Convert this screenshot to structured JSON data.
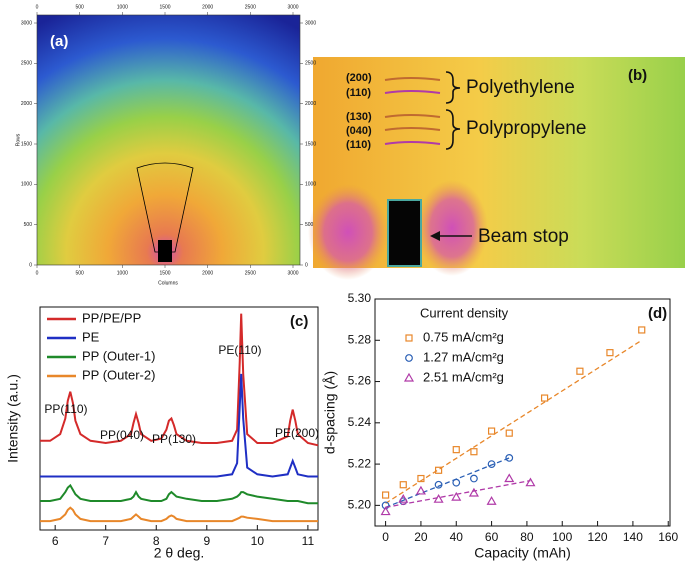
{
  "images": [
    {
      "label": "(a)",
      "xlabel": "Columns",
      "ylabel": "Rows",
      "xticks": [
        0,
        500,
        1000,
        1500,
        2000,
        2500,
        3000
      ],
      "yticks": [
        0,
        500,
        1000,
        1500,
        2000,
        2500,
        3000
      ]
    },
    {
      "label": "(b)",
      "reflections": [
        "(200)",
        "(110)",
        "(130)",
        "(040)",
        "(110)"
      ],
      "phases": [
        "Polyethylene",
        "Polypropylene"
      ],
      "beam_stop": "Beam stop"
    }
  ],
  "chart_data": [
    {
      "type": "line",
      "label": "(c)",
      "xlabel": "2 θ deg.",
      "ylabel": "Intensity (a.u.)",
      "x": [
        5.7,
        5.9,
        6.1,
        6.2,
        6.25,
        6.3,
        6.35,
        6.4,
        6.5,
        6.7,
        7.0,
        7.3,
        7.5,
        7.55,
        7.6,
        7.65,
        7.7,
        7.9,
        8.1,
        8.2,
        8.25,
        8.3,
        8.35,
        8.4,
        8.6,
        8.9,
        9.2,
        9.5,
        9.6,
        9.65,
        9.68,
        9.72,
        9.8,
        10.0,
        10.3,
        10.6,
        10.65,
        10.7,
        10.75,
        10.8,
        11.0,
        11.2
      ],
      "xlim": [
        5.7,
        11.2
      ],
      "xticks": [
        6,
        7,
        8,
        9,
        10,
        11
      ],
      "ylim": [
        0,
        100
      ],
      "annotations": [
        "PP(110)",
        "PP(040)",
        "PP(130)",
        "PE(110)",
        "PE(200)"
      ],
      "series": [
        {
          "name": "PP/PE/PP",
          "color": "#d42a2a",
          "values": [
            40,
            40,
            43,
            50,
            58,
            62,
            57,
            49,
            43,
            40,
            39,
            40,
            43,
            48,
            52,
            48,
            43,
            40,
            41,
            45,
            49,
            50,
            47,
            43,
            40,
            39,
            39,
            40,
            45,
            75,
            97,
            70,
            43,
            39,
            39,
            42,
            49,
            54,
            49,
            43,
            39,
            38
          ]
        },
        {
          "name": "PE",
          "color": "#1f2fc4",
          "values": [
            24,
            24,
            24,
            24,
            24,
            24,
            24,
            24,
            24,
            24,
            24,
            24,
            24,
            24,
            24,
            24,
            24,
            24,
            24,
            24,
            24,
            24,
            24,
            24,
            24,
            24,
            24,
            25,
            30,
            55,
            70,
            50,
            28,
            25,
            24,
            25,
            28,
            31,
            28,
            25,
            24,
            24
          ]
        },
        {
          "name": "PP (Outer-1)",
          "color": "#1f8a2a",
          "values": [
            13,
            13,
            14,
            17,
            19,
            20,
            18,
            16,
            14,
            13,
            13,
            13,
            14,
            15,
            17,
            15,
            14,
            13,
            13,
            14,
            16,
            17,
            16,
            15,
            14,
            13,
            13,
            14,
            15,
            16,
            17,
            17,
            16,
            15,
            14,
            13,
            13,
            13,
            13,
            13,
            12,
            12
          ]
        },
        {
          "name": "PP (Outer-2)",
          "color": "#e8872a",
          "values": [
            4,
            4,
            5,
            7,
            9,
            10,
            9,
            7,
            5,
            4,
            4,
            4,
            5,
            6,
            7,
            6,
            5,
            4,
            4,
            5,
            6,
            6.5,
            6,
            5,
            4,
            4,
            4,
            4,
            5,
            5.5,
            6,
            6,
            5.5,
            5,
            4,
            4,
            4,
            4,
            4,
            4,
            4,
            4
          ]
        }
      ]
    },
    {
      "type": "scatter",
      "label": "(d)",
      "xlabel": "Capacity (mAh)",
      "ylabel": "d-spacing (Å)",
      "legend_title": "Current density",
      "xlim": [
        -6,
        161
      ],
      "xticks": [
        0,
        20,
        40,
        60,
        80,
        100,
        120,
        140,
        160
      ],
      "ylim": [
        5.19,
        5.3
      ],
      "yticks": [
        {
          "value": 5.2,
          "label": "5.20"
        },
        5.22,
        5.24,
        5.26,
        5.28,
        {
          "value": 5.3,
          "label": "5.30"
        }
      ],
      "series": [
        {
          "name": "0.75 mA/cm²g",
          "color": "#e8872a",
          "marker": "square",
          "x": [
            0,
            10,
            20,
            30,
            40,
            50,
            60,
            70,
            90,
            110,
            127,
            145
          ],
          "values": [
            5.205,
            5.21,
            5.213,
            5.217,
            5.227,
            5.226,
            5.236,
            5.235,
            5.252,
            5.265,
            5.274,
            5.285
          ],
          "fit_x": [
            0,
            145
          ],
          "fit_y": [
            5.201,
            5.28
          ]
        },
        {
          "name": "1.27 mA/cm²g",
          "color": "#2a5fb5",
          "marker": "circle",
          "x": [
            0,
            10,
            30,
            40,
            50,
            60,
            70
          ],
          "values": [
            5.2,
            5.202,
            5.21,
            5.211,
            5.213,
            5.22,
            5.223
          ],
          "fit_x": [
            0,
            70
          ],
          "fit_y": [
            5.199,
            5.223
          ]
        },
        {
          "name": "2.51 mA/cm²g",
          "color": "#b03aa8",
          "marker": "triangle",
          "x": [
            0,
            10,
            20,
            30,
            40,
            50,
            60,
            70,
            82
          ],
          "values": [
            5.197,
            5.203,
            5.207,
            5.203,
            5.204,
            5.206,
            5.202,
            5.213,
            5.211
          ],
          "fit_x": [
            0,
            82
          ],
          "fit_y": [
            5.199,
            5.212
          ]
        }
      ]
    }
  ]
}
